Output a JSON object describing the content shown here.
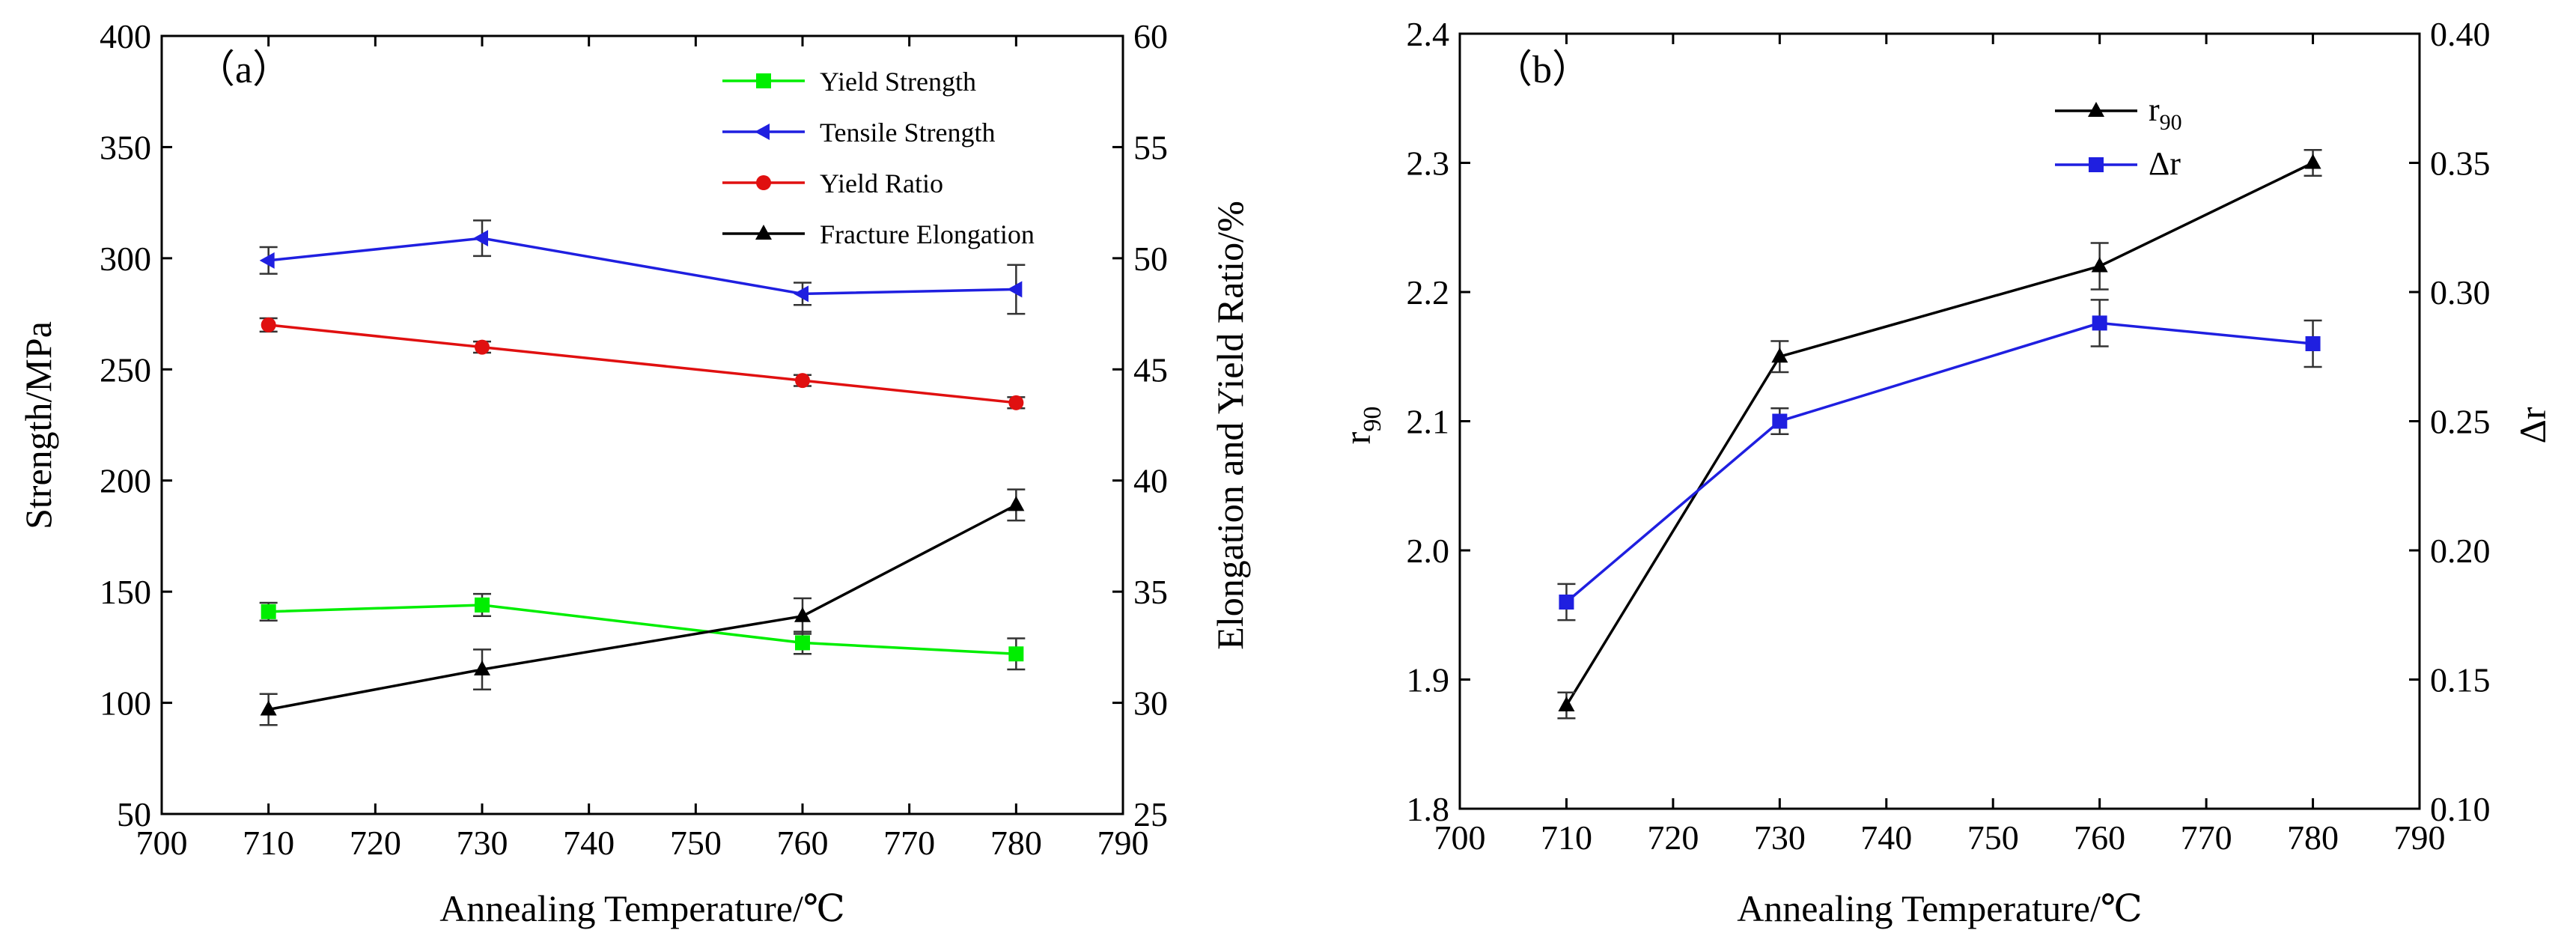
{
  "chart_data": [
    {
      "type": "line",
      "panel_label": "（a）",
      "xlabel": "Annealing Temperature/℃",
      "ylabel_left": "Strength/MPa",
      "ylabel_right": "Elongation and Yield Ratio/%",
      "xlim": [
        700,
        790
      ],
      "xticks": [
        700,
        710,
        720,
        730,
        740,
        750,
        760,
        770,
        780,
        790
      ],
      "ylim_left": [
        50,
        400
      ],
      "yticks_left": [
        50,
        100,
        150,
        200,
        250,
        300,
        350,
        400
      ],
      "ylim_right": [
        25,
        60
      ],
      "yticks_right": [
        25,
        30,
        35,
        40,
        45,
        50,
        55,
        60
      ],
      "legend_position": "top-right",
      "series": [
        {
          "name": "Yield Strength",
          "axis": "left",
          "color": "#00ee00",
          "marker": "square",
          "x": [
            710,
            730,
            760,
            780
          ],
          "y": [
            141,
            144,
            127,
            122
          ],
          "err": [
            4,
            5,
            5,
            7
          ]
        },
        {
          "name": "Tensile Strength",
          "axis": "left",
          "color": "#1f1fe0",
          "marker": "triangle-left",
          "x": [
            710,
            730,
            760,
            780
          ],
          "y": [
            299,
            309,
            284,
            286
          ],
          "err": [
            6,
            8,
            5,
            11
          ]
        },
        {
          "name": "Yield Ratio",
          "axis": "right",
          "color": "#e01010",
          "marker": "circle",
          "x": [
            710,
            730,
            760,
            780
          ],
          "y": [
            47.0,
            46.0,
            44.5,
            43.5
          ],
          "err": [
            0.3,
            0.25,
            0.25,
            0.25
          ]
        },
        {
          "name": "Fracture Elongation",
          "axis": "right",
          "color": "#000000",
          "marker": "triangle-up",
          "x": [
            710,
            730,
            760,
            780
          ],
          "y": [
            29.7,
            31.5,
            33.9,
            38.9
          ],
          "err": [
            0.7,
            0.9,
            0.8,
            0.7
          ]
        }
      ]
    },
    {
      "type": "line",
      "panel_label": "（b）",
      "xlabel": "Annealing Temperature/℃",
      "ylabel_left": "r",
      "ylabel_left_sub": "90",
      "ylabel_right": "Δr",
      "xlim": [
        700,
        790
      ],
      "xticks": [
        700,
        710,
        720,
        730,
        740,
        750,
        760,
        770,
        780,
        790
      ],
      "ylim_left": [
        1.8,
        2.4
      ],
      "yticks_left": [
        "1.8",
        "1.9",
        "2.0",
        "2.1",
        "2.2",
        "2.3",
        "2.4"
      ],
      "ylim_right": [
        0.1,
        0.4
      ],
      "yticks_right": [
        "0.10",
        "0.15",
        "0.20",
        "0.25",
        "0.30",
        "0.35",
        "0.40"
      ],
      "legend_position": "top-right",
      "series": [
        {
          "name": "r",
          "name_sub": "90",
          "axis": "left",
          "color": "#000000",
          "marker": "triangle-up",
          "x": [
            710,
            730,
            760,
            780
          ],
          "y": [
            1.88,
            2.15,
            2.22,
            2.3
          ],
          "err": [
            0.01,
            0.012,
            0.018,
            0.01
          ]
        },
        {
          "name": "Δr",
          "axis": "right",
          "color": "#1f1fe0",
          "marker": "square",
          "x": [
            710,
            730,
            760,
            780
          ],
          "y": [
            0.18,
            0.25,
            0.288,
            0.28
          ],
          "err": [
            0.007,
            0.005,
            0.009,
            0.009
          ]
        }
      ]
    }
  ]
}
